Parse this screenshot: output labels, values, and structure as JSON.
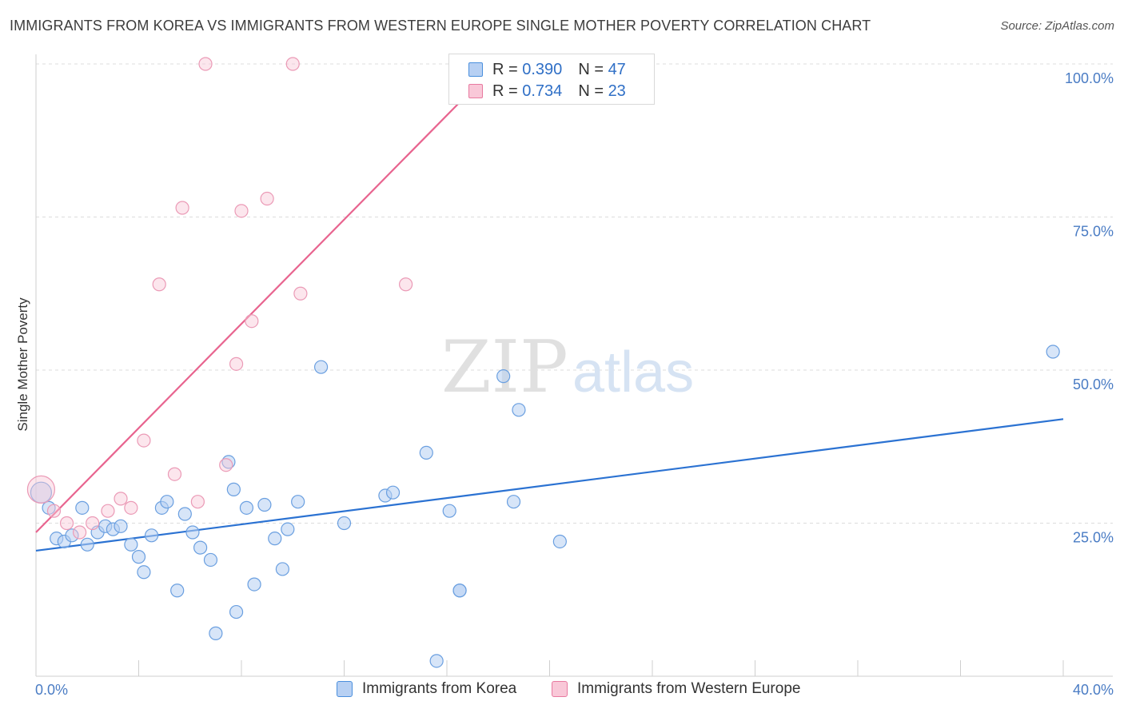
{
  "header": {
    "title": "IMMIGRANTS FROM KOREA VS IMMIGRANTS FROM WESTERN EUROPE SINGLE MOTHER POVERTY CORRELATION CHART",
    "source": "Source: ZipAtlas.com"
  },
  "watermark": {
    "zip": "ZIP",
    "atlas": "atlas"
  },
  "legend": {
    "korea": {
      "r_label": "R = ",
      "r_value": "0.390",
      "n_label": "N = ",
      "n_value": "47",
      "color": "#4a8fdd",
      "fill": "#b7d0f3"
    },
    "western_europe": {
      "r_label": "R = ",
      "r_value": "0.734",
      "n_label": "N = ",
      "n_value": "23",
      "color": "#e87aa0",
      "fill": "#f9c8d8"
    }
  },
  "bottom_legend": {
    "korea_label": "Immigrants from Korea",
    "western_europe_label": "Immigrants from Western Europe"
  },
  "chart_data": {
    "type": "scatter",
    "title": "IMMIGRANTS FROM KOREA VS IMMIGRANTS FROM WESTERN EUROPE SINGLE MOTHER POVERTY CORRELATION CHART",
    "xlabel": "",
    "ylabel": "Single Mother Poverty",
    "xlim": [
      0,
      40
    ],
    "ylim": [
      0,
      100
    ],
    "x_tick_labels": [
      "0.0%",
      "40.0%"
    ],
    "y_tick_labels": [
      "25.0%",
      "50.0%",
      "75.0%",
      "100.0%"
    ],
    "y_ticks": [
      25,
      50,
      75,
      100
    ],
    "grid": true,
    "legend_position": "top-center",
    "series": [
      {
        "name": "Immigrants from Korea",
        "color": "#4a8fdd",
        "points": [
          [
            0.2,
            30.0
          ],
          [
            0.5,
            27.5
          ],
          [
            0.8,
            22.5
          ],
          [
            1.1,
            22.0
          ],
          [
            1.4,
            23.0
          ],
          [
            1.8,
            27.5
          ],
          [
            2.0,
            21.5
          ],
          [
            2.4,
            23.5
          ],
          [
            2.7,
            24.5
          ],
          [
            3.0,
            24.0
          ],
          [
            3.3,
            24.5
          ],
          [
            3.7,
            21.5
          ],
          [
            4.0,
            19.5
          ],
          [
            4.2,
            17.0
          ],
          [
            4.5,
            23.0
          ],
          [
            4.9,
            27.5
          ],
          [
            5.1,
            28.5
          ],
          [
            5.5,
            14.0
          ],
          [
            5.8,
            26.5
          ],
          [
            6.1,
            23.5
          ],
          [
            6.4,
            21.0
          ],
          [
            6.8,
            19.0
          ],
          [
            7.0,
            7.0
          ],
          [
            7.5,
            35.0
          ],
          [
            7.7,
            30.5
          ],
          [
            7.8,
            10.5
          ],
          [
            8.2,
            27.5
          ],
          [
            8.5,
            15.0
          ],
          [
            8.9,
            28.0
          ],
          [
            9.3,
            22.5
          ],
          [
            9.6,
            17.5
          ],
          [
            9.8,
            24.0
          ],
          [
            10.2,
            28.5
          ],
          [
            11.1,
            50.5
          ],
          [
            12.0,
            25.0
          ],
          [
            13.6,
            29.5
          ],
          [
            13.9,
            30.0
          ],
          [
            15.2,
            36.5
          ],
          [
            15.6,
            2.5
          ],
          [
            16.1,
            27.0
          ],
          [
            16.5,
            14.0
          ],
          [
            16.5,
            14.0
          ],
          [
            18.2,
            49.0
          ],
          [
            18.6,
            28.5
          ],
          [
            18.8,
            43.5
          ],
          [
            20.4,
            22.0
          ],
          [
            39.6,
            53.0
          ]
        ]
      },
      {
        "name": "Immigrants from Western Europe",
        "color": "#e87aa0",
        "points": [
          [
            0.2,
            30.5
          ],
          [
            0.7,
            27.0
          ],
          [
            1.2,
            25.0
          ],
          [
            1.7,
            23.5
          ],
          [
            2.2,
            25.0
          ],
          [
            2.8,
            27.0
          ],
          [
            3.3,
            29.0
          ],
          [
            3.7,
            27.5
          ],
          [
            4.2,
            38.5
          ],
          [
            4.8,
            64.0
          ],
          [
            5.4,
            33.0
          ],
          [
            5.7,
            76.5
          ],
          [
            6.3,
            28.5
          ],
          [
            6.6,
            100.0
          ],
          [
            7.4,
            34.5
          ],
          [
            7.8,
            51.0
          ],
          [
            8.0,
            76.0
          ],
          [
            8.4,
            58.0
          ],
          [
            9.0,
            78.0
          ],
          [
            10.0,
            100.0
          ],
          [
            10.3,
            62.5
          ],
          [
            14.4,
            64.0
          ],
          [
            18.5,
            100.0
          ]
        ]
      }
    ],
    "trend_lines": [
      {
        "series": "Immigrants from Korea",
        "x": [
          0,
          40
        ],
        "y": [
          20.5,
          42.0
        ]
      },
      {
        "series": "Immigrants from Western Europe",
        "x": [
          0,
          17.5
        ],
        "y": [
          23.5,
          98.0
        ]
      }
    ]
  }
}
